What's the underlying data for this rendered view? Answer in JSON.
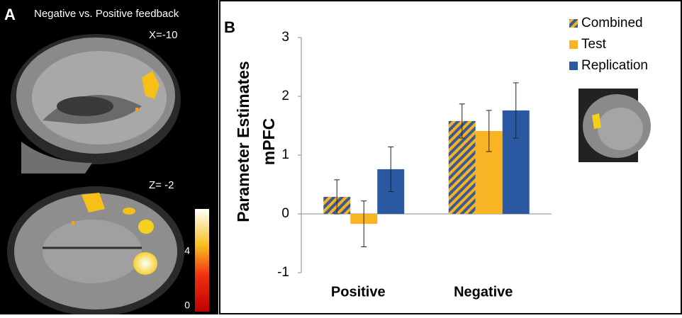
{
  "panel_a": {
    "label": "A",
    "title": "Negative vs. Positive  feedback",
    "sagittal_label": "X=-10",
    "axial_label": "Z= -2",
    "colorbar_ticks": [
      4,
      0
    ]
  },
  "chart_data": {
    "type": "bar",
    "label": "B",
    "y_label": [
      "Parameter Estimates",
      "mPFC"
    ],
    "categories": [
      "Positive",
      "Negative"
    ],
    "series": [
      {
        "name": "Combined",
        "color": "#f5b324",
        "hatch_color": "#3a5a92",
        "values": [
          0.29,
          1.58
        ],
        "errors": [
          0.29,
          0.29
        ]
      },
      {
        "name": "Test",
        "color": "#f8b422",
        "values": [
          -0.17,
          1.41
        ],
        "errors": [
          0.39,
          0.35
        ]
      },
      {
        "name": "Replication",
        "color": "#2a59a2",
        "values": [
          0.76,
          1.76
        ],
        "errors": [
          0.38,
          0.47
        ]
      }
    ],
    "ylim": [
      -1,
      3
    ],
    "yticks": [
      -1,
      0,
      1,
      2,
      3
    ],
    "legend": "upper-right"
  }
}
